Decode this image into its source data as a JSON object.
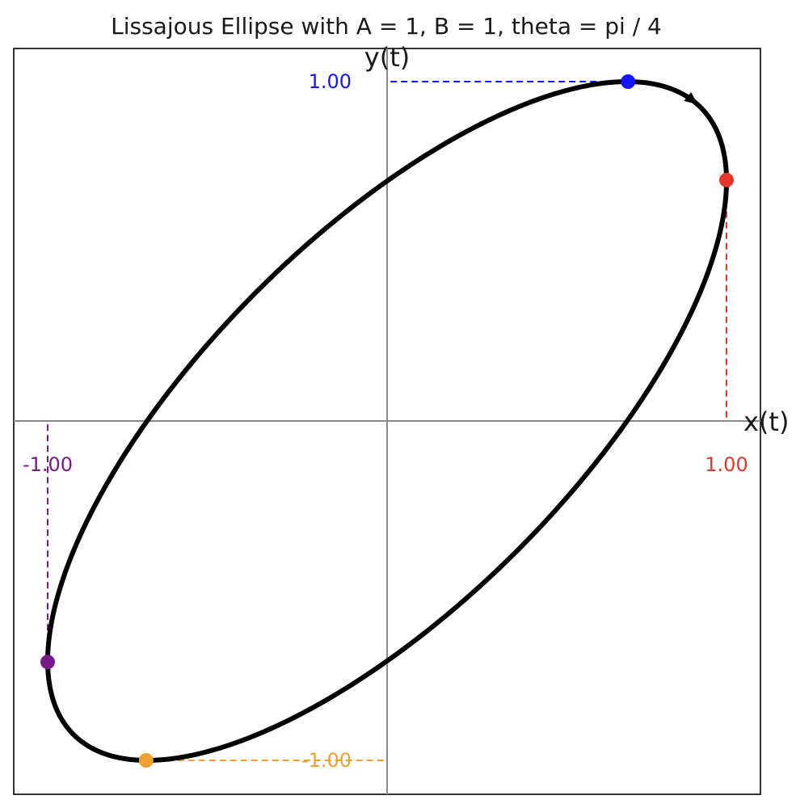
{
  "chart_data": {
    "type": "line",
    "title": "Lissajous Ellipse with A = 1, B = 1, theta = pi / 4",
    "xlabel": "x(t)",
    "ylabel": "y(t)",
    "xlim": [
      -1.0,
      1.0
    ],
    "ylim": [
      -1.0,
      1.0
    ],
    "grid": false,
    "legend": "none",
    "curve": {
      "x_expr": "sin(t)",
      "y_expr": "sin(t + pi/4)",
      "t_range": [
        0,
        6.2832
      ],
      "color": "#000000",
      "direction": "clockwise"
    },
    "markers": [
      {
        "name": "max_y",
        "x": 0.71,
        "y": 1.0,
        "label": "1.00",
        "color": "#1414ff",
        "guide": "horizontal"
      },
      {
        "name": "max_x",
        "x": 1.0,
        "y": 0.71,
        "label": "1.00",
        "color": "#e8352a",
        "guide": "vertical"
      },
      {
        "name": "min_x",
        "x": -1.0,
        "y": -0.71,
        "label": "-1.00",
        "color": "#7a1a8a",
        "guide": "vertical"
      },
      {
        "name": "min_y",
        "x": -0.71,
        "y": -1.0,
        "label": "-1.00",
        "color": "#f0a030",
        "guide": "horizontal"
      }
    ]
  }
}
